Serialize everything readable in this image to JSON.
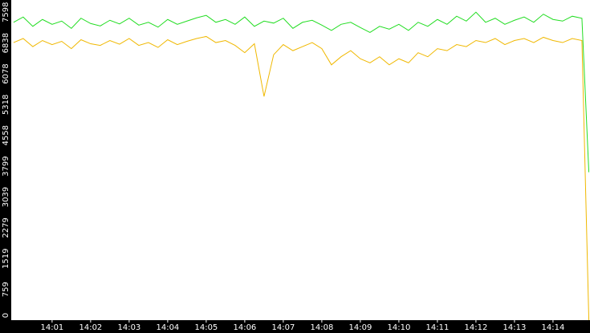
{
  "chart_data": {
    "type": "line",
    "x": [
      0,
      0.25,
      0.5,
      0.75,
      1,
      1.25,
      1.5,
      1.75,
      2,
      2.25,
      2.5,
      2.75,
      3,
      3.25,
      3.5,
      3.75,
      4,
      4.25,
      4.5,
      4.75,
      5,
      5.25,
      5.5,
      5.75,
      6,
      6.25,
      6.5,
      6.75,
      7,
      7.25,
      7.5,
      7.75,
      8,
      8.25,
      8.5,
      8.75,
      9,
      9.25,
      9.5,
      9.75,
      10,
      10.25,
      10.5,
      10.75,
      11,
      11.25,
      11.5,
      11.75,
      12,
      12.25,
      12.5,
      12.75,
      13,
      13.25,
      13.5,
      13.75,
      14,
      14.25,
      14.5,
      14.75,
      14.93
    ],
    "series": [
      {
        "color": "#22dd22",
        "values": [
          7350,
          7480,
          7250,
          7420,
          7300,
          7380,
          7200,
          7450,
          7320,
          7260,
          7400,
          7310,
          7450,
          7280,
          7350,
          7230,
          7420,
          7300,
          7380,
          7460,
          7520,
          7350,
          7420,
          7300,
          7480,
          7250,
          7380,
          7330,
          7450,
          7200,
          7350,
          7400,
          7280,
          7150,
          7300,
          7350,
          7220,
          7100,
          7250,
          7180,
          7300,
          7150,
          7350,
          7250,
          7420,
          7300,
          7500,
          7380,
          7600,
          7350,
          7450,
          7300,
          7400,
          7480,
          7350,
          7550,
          7420,
          7380,
          7500,
          7450,
          3650
        ]
      },
      {
        "color": "#f0b800",
        "values": [
          6850,
          6950,
          6750,
          6900,
          6800,
          6880,
          6700,
          6920,
          6820,
          6780,
          6900,
          6810,
          6950,
          6780,
          6850,
          6730,
          6920,
          6800,
          6880,
          6950,
          7000,
          6850,
          6900,
          6780,
          6600,
          6820,
          5520,
          6550,
          6800,
          6650,
          6750,
          6850,
          6700,
          6300,
          6500,
          6650,
          6450,
          6350,
          6500,
          6300,
          6450,
          6350,
          6600,
          6500,
          6700,
          6650,
          6800,
          6750,
          6900,
          6850,
          6950,
          6800,
          6900,
          6950,
          6850,
          6980,
          6900,
          6850,
          6950,
          6900,
          0
        ]
      }
    ],
    "xlim": [
      -0.06,
      14.96
    ],
    "xticks": [
      {
        "value": 1,
        "label": "14:01"
      },
      {
        "value": 2,
        "label": "14:02"
      },
      {
        "value": 3,
        "label": "14:03"
      },
      {
        "value": 4,
        "label": "14:04"
      },
      {
        "value": 5,
        "label": "14:05"
      },
      {
        "value": 6,
        "label": "14:06"
      },
      {
        "value": 7,
        "label": "14:07"
      },
      {
        "value": 8,
        "label": "14:08"
      },
      {
        "value": 9,
        "label": "14:09"
      },
      {
        "value": 10,
        "label": "14:10"
      },
      {
        "value": 11,
        "label": "14:11"
      },
      {
        "value": 12,
        "label": "14:12"
      },
      {
        "value": 13,
        "label": "14:13"
      },
      {
        "value": 14,
        "label": "14:14"
      }
    ],
    "ylim": [
      0,
      7900
    ],
    "yticks": [
      0,
      759,
      1519,
      2279,
      3039,
      3799,
      4558,
      5318,
      6078,
      6838,
      7598
    ]
  }
}
